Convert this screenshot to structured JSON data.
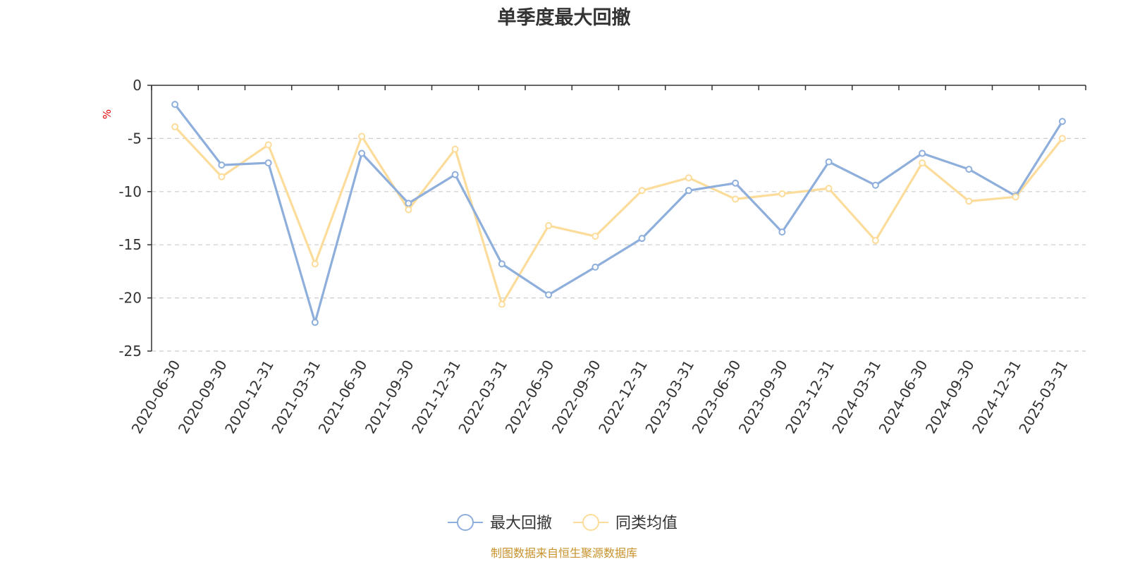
{
  "title": "单季度最大回撤",
  "source_note": "制图数据来自恒生聚源数据库",
  "chart_data": {
    "type": "line",
    "title": "单季度最大回撤",
    "ylabel": "%",
    "xlabel": "",
    "ylim": [
      -25,
      0
    ],
    "yticks": [
      0,
      -5,
      -10,
      -15,
      -20,
      -25
    ],
    "grid": true,
    "legend_position": "bottom-center",
    "categories": [
      "2020-06-30",
      "2020-09-30",
      "2020-12-31",
      "2021-03-31",
      "2021-06-30",
      "2021-09-30",
      "2021-12-31",
      "2022-03-31",
      "2022-06-30",
      "2022-09-30",
      "2022-12-31",
      "2023-03-31",
      "2023-06-30",
      "2023-09-30",
      "2023-12-31",
      "2024-03-31",
      "2024-06-30",
      "2024-09-30",
      "2024-12-31",
      "2025-03-31"
    ],
    "series": [
      {
        "name": "最大回撤",
        "color": "#8eaedb",
        "values": [
          -1.8,
          -7.5,
          -7.3,
          -22.3,
          -6.4,
          -11.1,
          -8.4,
          -16.8,
          -19.7,
          -17.1,
          -14.4,
          -9.9,
          -9.2,
          -13.8,
          -7.2,
          -9.4,
          -6.4,
          -7.9,
          -10.4,
          -3.4
        ]
      },
      {
        "name": "同类均值",
        "color": "#fcdc9a",
        "values": [
          -3.9,
          -8.6,
          -5.6,
          -16.8,
          -4.8,
          -11.7,
          -6.0,
          -20.6,
          -13.2,
          -14.2,
          -9.9,
          -8.7,
          -10.7,
          -10.2,
          -9.7,
          -14.6,
          -7.3,
          -10.9,
          -10.5,
          -5.0
        ]
      }
    ]
  }
}
